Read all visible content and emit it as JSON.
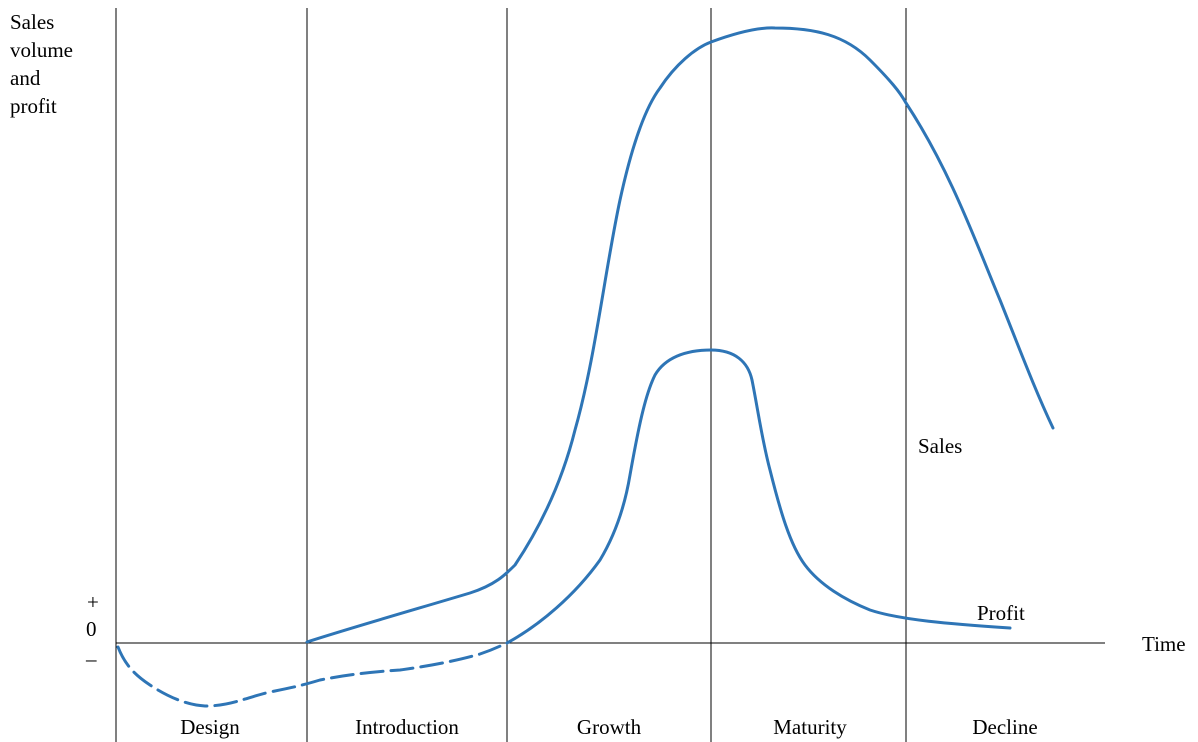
{
  "y_axis_label": [
    "Sales",
    "volume",
    "and",
    "profit"
  ],
  "y_signs": {
    "plus": "+",
    "zero": "0",
    "minus": "–"
  },
  "x_axis_label": "Time",
  "stages": [
    "Design",
    "Introduction",
    "Growth",
    "Maturity",
    "Decline"
  ],
  "curves": {
    "sales_label": "Sales",
    "profit_label": "Profit"
  },
  "colors": {
    "curve": "#2e75b6",
    "axis": "#000000"
  }
}
